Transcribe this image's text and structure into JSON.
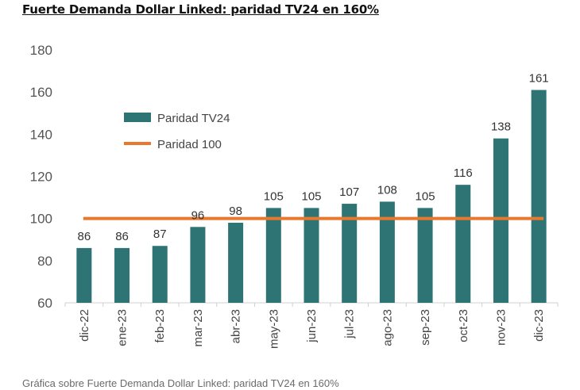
{
  "title": "Fuerte Demanda Dollar Linked: paridad TV24 en 160%",
  "caption": "Gráfica sobre Fuerte Demanda Dollar Linked: paridad TV24 en 160%",
  "chart_data": {
    "type": "bar",
    "categories": [
      "dic-22",
      "ene-23",
      "feb-23",
      "mar-23",
      "abr-23",
      "may-23",
      "jun-23",
      "jul-23",
      "ago-23",
      "sep-23",
      "oct-23",
      "nov-23",
      "dic-23"
    ],
    "series": [
      {
        "name": "Paridad TV24",
        "type": "bar",
        "color": "#2e7475",
        "values": [
          86,
          86,
          87,
          96,
          98,
          105,
          105,
          107,
          108,
          105,
          116,
          138,
          161
        ]
      },
      {
        "name": "Paridad 100",
        "type": "line",
        "color": "#e9782f",
        "values": [
          100,
          100,
          100,
          100,
          100,
          100,
          100,
          100,
          100,
          100,
          100,
          100,
          100
        ]
      }
    ],
    "data_labels": [
      "86",
      "86",
      "87",
      "96",
      "98",
      "105",
      "105",
      "107",
      "108",
      "105",
      "116",
      "138",
      "161"
    ],
    "ylim": [
      60,
      180
    ],
    "yticks": [
      60,
      80,
      100,
      120,
      140,
      160,
      180
    ],
    "xlabel": "",
    "ylabel": "",
    "grid": false,
    "legend_position": "upper-left"
  }
}
